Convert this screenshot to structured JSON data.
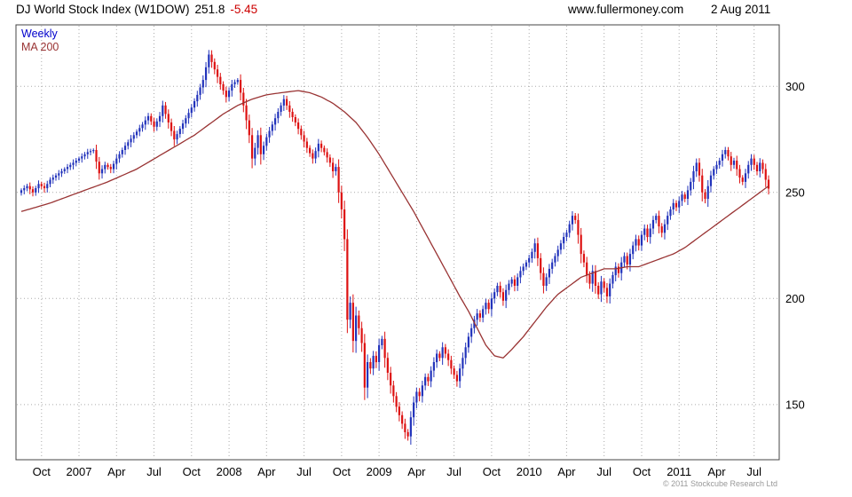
{
  "header": {
    "title": "DJ World Stock Index (W1DOW)",
    "last_price": "251.8",
    "change": "-5.45",
    "website": "www.fullermoney.com",
    "date": "2 Aug 2011"
  },
  "legend": {
    "weekly_label": "Weekly",
    "ma_label": "MA 200"
  },
  "footer": {
    "copyright": "© 2011 Stockcube Research Ltd"
  },
  "chart_data": {
    "type": "candlestick",
    "title": "DJ World Stock Index (W1DOW)",
    "timeframe": "Weekly",
    "overlay": "MA 200",
    "last_close": 251.8,
    "change": -5.45,
    "ylim": [
      124,
      329
    ],
    "y_gridlines": [
      150,
      200,
      250,
      300
    ],
    "num_weeks": 260,
    "x_ticks": [
      {
        "week": 7,
        "label": "Oct"
      },
      {
        "week": 20,
        "label": "2007"
      },
      {
        "week": 33,
        "label": "Apr"
      },
      {
        "week": 46,
        "label": "Jul"
      },
      {
        "week": 59,
        "label": "Oct"
      },
      {
        "week": 72,
        "label": "2008"
      },
      {
        "week": 85,
        "label": "Apr"
      },
      {
        "week": 98,
        "label": "Jul"
      },
      {
        "week": 111,
        "label": "Oct"
      },
      {
        "week": 124,
        "label": "2009"
      },
      {
        "week": 137,
        "label": "Apr"
      },
      {
        "week": 150,
        "label": "Jul"
      },
      {
        "week": 163,
        "label": "Oct"
      },
      {
        "week": 176,
        "label": "2010"
      },
      {
        "week": 189,
        "label": "Apr"
      },
      {
        "week": 202,
        "label": "Jul"
      },
      {
        "week": 215,
        "label": "Oct"
      },
      {
        "week": 228,
        "label": "2011"
      },
      {
        "week": 241,
        "label": "Apr"
      },
      {
        "week": 254,
        "label": "Jul"
      }
    ],
    "weekly_close_anchors": [
      [
        0,
        251
      ],
      [
        2,
        253
      ],
      [
        4,
        250
      ],
      [
        6,
        254
      ],
      [
        8,
        252
      ],
      [
        10,
        256
      ],
      [
        13,
        259
      ],
      [
        16,
        262
      ],
      [
        20,
        266
      ],
      [
        23,
        269
      ],
      [
        25,
        270
      ],
      [
        27,
        259
      ],
      [
        29,
        263
      ],
      [
        31,
        261
      ],
      [
        33,
        266
      ],
      [
        36,
        272
      ],
      [
        39,
        277
      ],
      [
        42,
        282
      ],
      [
        44,
        286
      ],
      [
        46,
        281
      ],
      [
        48,
        286
      ],
      [
        49,
        291
      ],
      [
        51,
        283
      ],
      [
        53,
        275
      ],
      [
        55,
        280
      ],
      [
        57,
        285
      ],
      [
        59,
        290
      ],
      [
        61,
        296
      ],
      [
        63,
        303
      ],
      [
        65,
        315
      ],
      [
        67,
        308
      ],
      [
        69,
        301
      ],
      [
        71,
        295
      ],
      [
        73,
        301
      ],
      [
        75,
        303
      ],
      [
        77,
        291
      ],
      [
        79,
        277
      ],
      [
        80,
        266
      ],
      [
        81,
        271
      ],
      [
        82,
        277
      ],
      [
        83,
        268
      ],
      [
        84,
        272
      ],
      [
        85,
        276
      ],
      [
        87,
        282
      ],
      [
        89,
        288
      ],
      [
        91,
        294
      ],
      [
        93,
        288
      ],
      [
        95,
        283
      ],
      [
        97,
        277
      ],
      [
        99,
        271
      ],
      [
        101,
        266
      ],
      [
        103,
        273
      ],
      [
        105,
        269
      ],
      [
        107,
        264
      ],
      [
        108,
        260
      ],
      [
        109,
        262
      ],
      [
        110,
        250
      ],
      [
        111,
        242
      ],
      [
        112,
        228
      ],
      [
        113,
        190
      ],
      [
        114,
        198
      ],
      [
        115,
        180
      ],
      [
        116,
        192
      ],
      [
        117,
        186
      ],
      [
        118,
        179
      ],
      [
        119,
        158
      ],
      [
        120,
        170
      ],
      [
        121,
        167
      ],
      [
        122,
        173
      ],
      [
        123,
        170
      ],
      [
        124,
        178
      ],
      [
        125,
        181
      ],
      [
        126,
        172
      ],
      [
        127,
        165
      ],
      [
        128,
        159
      ],
      [
        129,
        154
      ],
      [
        130,
        149
      ],
      [
        131,
        145
      ],
      [
        132,
        141
      ],
      [
        133,
        137
      ],
      [
        134,
        135
      ],
      [
        135,
        144
      ],
      [
        136,
        151
      ],
      [
        137,
        156
      ],
      [
        138,
        154
      ],
      [
        139,
        159
      ],
      [
        140,
        163
      ],
      [
        141,
        161
      ],
      [
        142,
        166
      ],
      [
        143,
        170
      ],
      [
        144,
        174
      ],
      [
        145,
        172
      ],
      [
        146,
        177
      ],
      [
        147,
        174
      ],
      [
        148,
        171
      ],
      [
        149,
        167
      ],
      [
        150,
        164
      ],
      [
        151,
        161
      ],
      [
        152,
        167
      ],
      [
        153,
        172
      ],
      [
        154,
        177
      ],
      [
        155,
        182
      ],
      [
        156,
        186
      ],
      [
        157,
        190
      ],
      [
        158,
        193
      ],
      [
        159,
        191
      ],
      [
        160,
        195
      ],
      [
        161,
        198
      ],
      [
        162,
        195
      ],
      [
        163,
        200
      ],
      [
        164,
        203
      ],
      [
        165,
        206
      ],
      [
        166,
        203
      ],
      [
        167,
        199
      ],
      [
        168,
        204
      ],
      [
        169,
        207
      ],
      [
        170,
        209
      ],
      [
        171,
        206
      ],
      [
        172,
        210
      ],
      [
        173,
        213
      ],
      [
        174,
        215
      ],
      [
        175,
        217
      ],
      [
        176,
        219
      ],
      [
        177,
        222
      ],
      [
        178,
        226
      ],
      [
        179,
        219
      ],
      [
        180,
        212
      ],
      [
        181,
        206
      ],
      [
        182,
        210
      ],
      [
        183,
        214
      ],
      [
        184,
        217
      ],
      [
        185,
        220
      ],
      [
        186,
        223
      ],
      [
        187,
        226
      ],
      [
        188,
        229
      ],
      [
        189,
        231
      ],
      [
        190,
        235
      ],
      [
        191,
        239
      ],
      [
        192,
        237
      ],
      [
        193,
        230
      ],
      [
        194,
        221
      ],
      [
        195,
        217
      ],
      [
        196,
        211
      ],
      [
        197,
        207
      ],
      [
        198,
        213
      ],
      [
        199,
        206
      ],
      [
        200,
        202
      ],
      [
        201,
        208
      ],
      [
        202,
        205
      ],
      [
        203,
        201
      ],
      [
        204,
        207
      ],
      [
        205,
        211
      ],
      [
        206,
        215
      ],
      [
        207,
        212
      ],
      [
        208,
        217
      ],
      [
        209,
        220
      ],
      [
        210,
        216
      ],
      [
        211,
        221
      ],
      [
        212,
        225
      ],
      [
        213,
        228
      ],
      [
        214,
        225
      ],
      [
        215,
        230
      ],
      [
        216,
        233
      ],
      [
        217,
        229
      ],
      [
        218,
        233
      ],
      [
        219,
        237
      ],
      [
        220,
        239
      ],
      [
        221,
        234
      ],
      [
        222,
        231
      ],
      [
        223,
        235
      ],
      [
        224,
        239
      ],
      [
        225,
        242
      ],
      [
        226,
        245
      ],
      [
        227,
        243
      ],
      [
        228,
        246
      ],
      [
        229,
        249
      ],
      [
        230,
        247
      ],
      [
        231,
        251
      ],
      [
        232,
        255
      ],
      [
        233,
        260
      ],
      [
        234,
        264
      ],
      [
        235,
        258
      ],
      [
        236,
        250
      ],
      [
        237,
        247
      ],
      [
        238,
        253
      ],
      [
        239,
        258
      ],
      [
        240,
        261
      ],
      [
        241,
        263
      ],
      [
        242,
        265
      ],
      [
        243,
        268
      ],
      [
        244,
        270
      ],
      [
        245,
        267
      ],
      [
        246,
        263
      ],
      [
        247,
        265
      ],
      [
        248,
        261
      ],
      [
        249,
        257
      ],
      [
        250,
        255
      ],
      [
        251,
        259
      ],
      [
        252,
        263
      ],
      [
        253,
        266
      ],
      [
        254,
        263
      ],
      [
        255,
        260
      ],
      [
        256,
        264
      ],
      [
        257,
        261
      ],
      [
        258,
        256
      ],
      [
        259,
        251.8
      ]
    ],
    "ma200_anchors": [
      [
        0,
        241
      ],
      [
        10,
        245
      ],
      [
        20,
        250
      ],
      [
        30,
        255
      ],
      [
        40,
        261
      ],
      [
        45,
        265
      ],
      [
        50,
        269
      ],
      [
        55,
        273
      ],
      [
        60,
        277
      ],
      [
        65,
        282
      ],
      [
        70,
        287
      ],
      [
        75,
        291
      ],
      [
        80,
        294
      ],
      [
        85,
        296
      ],
      [
        90,
        297
      ],
      [
        96,
        298
      ],
      [
        100,
        297
      ],
      [
        104,
        295
      ],
      [
        108,
        292
      ],
      [
        112,
        288
      ],
      [
        116,
        283
      ],
      [
        120,
        276
      ],
      [
        124,
        268
      ],
      [
        128,
        259
      ],
      [
        132,
        250
      ],
      [
        136,
        241
      ],
      [
        140,
        231
      ],
      [
        144,
        221
      ],
      [
        148,
        211
      ],
      [
        152,
        201
      ],
      [
        155,
        194
      ],
      [
        158,
        186
      ],
      [
        161,
        178
      ],
      [
        164,
        173
      ],
      [
        167,
        172
      ],
      [
        170,
        176
      ],
      [
        174,
        182
      ],
      [
        178,
        189
      ],
      [
        182,
        196
      ],
      [
        186,
        202
      ],
      [
        190,
        206
      ],
      [
        194,
        210
      ],
      [
        198,
        212
      ],
      [
        202,
        214
      ],
      [
        206,
        214
      ],
      [
        210,
        215
      ],
      [
        214,
        215
      ],
      [
        218,
        217
      ],
      [
        222,
        219
      ],
      [
        226,
        221
      ],
      [
        230,
        224
      ],
      [
        234,
        228
      ],
      [
        238,
        232
      ],
      [
        242,
        236
      ],
      [
        246,
        240
      ],
      [
        250,
        244
      ],
      [
        254,
        248
      ],
      [
        257,
        251
      ],
      [
        259,
        253
      ]
    ],
    "colors": {
      "up": "#2233bb",
      "down": "#dd1111",
      "ma": "#993333",
      "grid": "#aaaaaa",
      "frame": "#444444",
      "change_text": "#cc0000"
    }
  }
}
